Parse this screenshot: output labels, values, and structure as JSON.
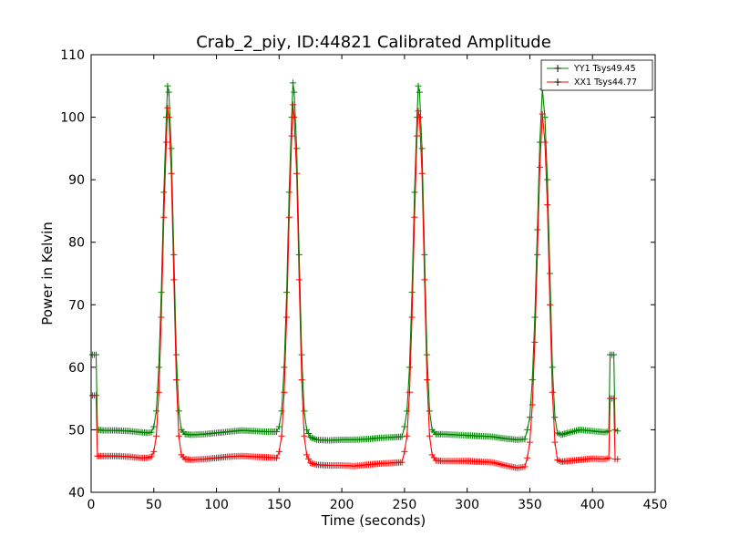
{
  "chart_data": {
    "type": "line",
    "title": "Crab_2_piy, ID:44821 Calibrated Amplitude",
    "xlabel": "Time (seconds)",
    "ylabel": "Power in Kelvin",
    "xlim": [
      0,
      450
    ],
    "ylim": [
      40,
      110
    ],
    "xticks": [
      0,
      50,
      100,
      150,
      200,
      250,
      300,
      350,
      400,
      450
    ],
    "yticks": [
      40,
      50,
      60,
      70,
      80,
      90,
      100,
      110
    ],
    "grid": false,
    "legend_position": "top-right",
    "series": [
      {
        "name": "YY1 Tsys49.45",
        "color": "#008000",
        "points": [
          [
            1,
            62
          ],
          [
            4,
            62
          ],
          [
            5,
            50
          ],
          [
            10,
            49.9
          ],
          [
            20,
            49.9
          ],
          [
            30,
            49.8
          ],
          [
            40,
            49.6
          ],
          [
            45,
            49.5
          ],
          [
            48,
            49.6
          ],
          [
            50,
            50.5
          ],
          [
            52,
            53
          ],
          [
            54,
            60
          ],
          [
            56,
            72
          ],
          [
            58,
            88
          ],
          [
            60,
            100
          ],
          [
            61,
            105
          ],
          [
            62,
            104
          ],
          [
            64,
            95
          ],
          [
            66,
            78
          ],
          [
            68,
            62
          ],
          [
            70,
            53
          ],
          [
            72,
            50
          ],
          [
            75,
            49.3
          ],
          [
            80,
            49.2
          ],
          [
            90,
            49.3
          ],
          [
            100,
            49.5
          ],
          [
            110,
            49.7
          ],
          [
            120,
            49.9
          ],
          [
            130,
            49.8
          ],
          [
            140,
            49.7
          ],
          [
            148,
            49.7
          ],
          [
            150,
            50.5
          ],
          [
            152,
            53
          ],
          [
            154,
            60
          ],
          [
            156,
            72
          ],
          [
            158,
            88
          ],
          [
            160,
            100
          ],
          [
            161,
            105.5
          ],
          [
            162,
            104
          ],
          [
            164,
            95
          ],
          [
            166,
            78
          ],
          [
            168,
            62
          ],
          [
            170,
            53
          ],
          [
            172,
            50
          ],
          [
            175,
            48.8
          ],
          [
            180,
            48.4
          ],
          [
            190,
            48.3
          ],
          [
            200,
            48.4
          ],
          [
            210,
            48.4
          ],
          [
            220,
            48.5
          ],
          [
            230,
            48.7
          ],
          [
            240,
            48.8
          ],
          [
            248,
            48.9
          ],
          [
            250,
            50.5
          ],
          [
            252,
            53
          ],
          [
            254,
            60
          ],
          [
            256,
            72
          ],
          [
            258,
            88
          ],
          [
            260,
            100
          ],
          [
            261,
            105
          ],
          [
            262,
            104
          ],
          [
            264,
            95
          ],
          [
            266,
            78
          ],
          [
            268,
            62
          ],
          [
            270,
            53
          ],
          [
            272,
            50
          ],
          [
            275,
            49.3
          ],
          [
            280,
            49.3
          ],
          [
            290,
            49.2
          ],
          [
            300,
            49.1
          ],
          [
            310,
            49
          ],
          [
            320,
            48.9
          ],
          [
            330,
            48.6
          ],
          [
            340,
            48.4
          ],
          [
            346,
            48.5
          ],
          [
            348,
            50
          ],
          [
            350,
            52
          ],
          [
            352,
            58
          ],
          [
            354,
            68
          ],
          [
            356,
            82
          ],
          [
            358,
            96
          ],
          [
            360,
            104.5
          ],
          [
            362,
            100
          ],
          [
            364,
            90
          ],
          [
            366,
            75
          ],
          [
            368,
            60
          ],
          [
            370,
            52
          ],
          [
            372,
            49.5
          ],
          [
            375,
            49.2
          ],
          [
            380,
            49.5
          ],
          [
            390,
            50
          ],
          [
            400,
            49.8
          ],
          [
            410,
            49.6
          ],
          [
            413,
            49.8
          ],
          [
            414,
            62
          ],
          [
            417,
            62
          ],
          [
            418,
            50
          ],
          [
            420,
            49.8
          ]
        ]
      },
      {
        "name": "XX1 Tsys44.77",
        "color": "#ff0000",
        "points": [
          [
            1,
            55.5
          ],
          [
            4,
            55.5
          ],
          [
            5,
            45.8
          ],
          [
            10,
            45.8
          ],
          [
            20,
            45.8
          ],
          [
            30,
            45.7
          ],
          [
            40,
            45.5
          ],
          [
            45,
            45.5
          ],
          [
            48,
            45.7
          ],
          [
            50,
            46.5
          ],
          [
            52,
            49
          ],
          [
            54,
            56
          ],
          [
            56,
            68
          ],
          [
            58,
            84
          ],
          [
            60,
            96
          ],
          [
            61,
            101.5
          ],
          [
            62,
            100
          ],
          [
            64,
            91
          ],
          [
            66,
            74
          ],
          [
            68,
            58
          ],
          [
            70,
            49
          ],
          [
            72,
            46
          ],
          [
            75,
            45.3
          ],
          [
            80,
            45.2
          ],
          [
            90,
            45.3
          ],
          [
            100,
            45.5
          ],
          [
            110,
            45.7
          ],
          [
            120,
            45.8
          ],
          [
            130,
            45.7
          ],
          [
            140,
            45.6
          ],
          [
            148,
            45.5
          ],
          [
            150,
            46.5
          ],
          [
            152,
            49
          ],
          [
            154,
            56
          ],
          [
            156,
            68
          ],
          [
            158,
            84
          ],
          [
            160,
            97
          ],
          [
            161,
            102
          ],
          [
            162,
            100
          ],
          [
            164,
            91
          ],
          [
            166,
            74
          ],
          [
            168,
            58
          ],
          [
            170,
            49
          ],
          [
            172,
            46
          ],
          [
            175,
            44.7
          ],
          [
            180,
            44.4
          ],
          [
            190,
            44.3
          ],
          [
            200,
            44.3
          ],
          [
            210,
            44.2
          ],
          [
            220,
            44.4
          ],
          [
            230,
            44.6
          ],
          [
            240,
            44.7
          ],
          [
            248,
            44.8
          ],
          [
            250,
            46.5
          ],
          [
            252,
            49
          ],
          [
            254,
            56
          ],
          [
            256,
            68
          ],
          [
            258,
            84
          ],
          [
            260,
            97
          ],
          [
            261,
            101
          ],
          [
            262,
            100
          ],
          [
            264,
            91
          ],
          [
            266,
            74
          ],
          [
            268,
            58
          ],
          [
            270,
            49
          ],
          [
            272,
            46
          ],
          [
            275,
            45.1
          ],
          [
            280,
            45
          ],
          [
            290,
            45
          ],
          [
            300,
            45
          ],
          [
            310,
            44.9
          ],
          [
            320,
            44.8
          ],
          [
            330,
            44.3
          ],
          [
            340,
            43.9
          ],
          [
            346,
            44.1
          ],
          [
            348,
            45.5
          ],
          [
            350,
            48
          ],
          [
            352,
            54
          ],
          [
            354,
            64
          ],
          [
            356,
            78
          ],
          [
            358,
            92
          ],
          [
            360,
            100.5
          ],
          [
            362,
            96
          ],
          [
            364,
            86
          ],
          [
            366,
            70
          ],
          [
            368,
            56
          ],
          [
            370,
            48
          ],
          [
            372,
            45.2
          ],
          [
            375,
            44.9
          ],
          [
            380,
            45
          ],
          [
            390,
            45.2
          ],
          [
            400,
            45.4
          ],
          [
            410,
            45.3
          ],
          [
            413,
            45.5
          ],
          [
            414,
            55
          ],
          [
            417,
            55
          ],
          [
            418,
            45.3
          ],
          [
            420,
            45.3
          ]
        ]
      }
    ]
  }
}
